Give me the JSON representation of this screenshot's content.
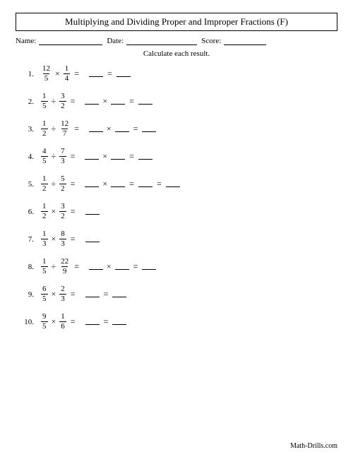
{
  "title": "Multiplying and Dividing Proper and Improper Fractions (F)",
  "labels": {
    "name": "Name:",
    "date": "Date:",
    "score": "Score:"
  },
  "instruction": "Calculate each result.",
  "footer": "Math-Drills.com",
  "colors": {
    "background": "#ffffff",
    "text": "#000000",
    "border": "#000000"
  },
  "style": {
    "font_family": "Times New Roman, serif",
    "title_fontsize": 13,
    "body_fontsize": 11,
    "blank_frac_width": 20,
    "blank_single_width": 20
  },
  "problems": [
    {
      "num": "1.",
      "f1n": "12",
      "f1d": "5",
      "op": "×",
      "f2n": "1",
      "f2d": "4",
      "rhs": [
        {
          "t": "blank"
        },
        {
          "t": "eq"
        },
        {
          "t": "blank"
        }
      ]
    },
    {
      "num": "2.",
      "f1n": "1",
      "f1d": "5",
      "op": "÷",
      "f2n": "3",
      "f2d": "2",
      "rhs": [
        {
          "t": "blank"
        },
        {
          "t": "times"
        },
        {
          "t": "blank"
        },
        {
          "t": "eq"
        },
        {
          "t": "blank"
        }
      ]
    },
    {
      "num": "3.",
      "f1n": "1",
      "f1d": "2",
      "op": "÷",
      "f2n": "12",
      "f2d": "7",
      "rhs": [
        {
          "t": "blank"
        },
        {
          "t": "times"
        },
        {
          "t": "blank"
        },
        {
          "t": "eq"
        },
        {
          "t": "blank"
        }
      ]
    },
    {
      "num": "4.",
      "f1n": "4",
      "f1d": "5",
      "op": "÷",
      "f2n": "7",
      "f2d": "3",
      "rhs": [
        {
          "t": "blank"
        },
        {
          "t": "times"
        },
        {
          "t": "blank"
        },
        {
          "t": "eq"
        },
        {
          "t": "blank"
        }
      ]
    },
    {
      "num": "5.",
      "f1n": "1",
      "f1d": "2",
      "op": "÷",
      "f2n": "5",
      "f2d": "2",
      "rhs": [
        {
          "t": "blank"
        },
        {
          "t": "times"
        },
        {
          "t": "blank"
        },
        {
          "t": "eq"
        },
        {
          "t": "blank"
        },
        {
          "t": "eq"
        },
        {
          "t": "blank"
        }
      ]
    },
    {
      "num": "6.",
      "f1n": "1",
      "f1d": "2",
      "op": "×",
      "f2n": "3",
      "f2d": "2",
      "rhs": [
        {
          "t": "blank"
        }
      ]
    },
    {
      "num": "7.",
      "f1n": "1",
      "f1d": "3",
      "op": "×",
      "f2n": "8",
      "f2d": "3",
      "rhs": [
        {
          "t": "blank"
        }
      ]
    },
    {
      "num": "8.",
      "f1n": "1",
      "f1d": "5",
      "op": "÷",
      "f2n": "22",
      "f2d": "9",
      "rhs": [
        {
          "t": "blank"
        },
        {
          "t": "times"
        },
        {
          "t": "blank"
        },
        {
          "t": "eq"
        },
        {
          "t": "blank"
        }
      ]
    },
    {
      "num": "9.",
      "f1n": "6",
      "f1d": "5",
      "op": "×",
      "f2n": "2",
      "f2d": "3",
      "rhs": [
        {
          "t": "blank"
        },
        {
          "t": "eq"
        },
        {
          "t": "blank"
        }
      ]
    },
    {
      "num": "10.",
      "f1n": "9",
      "f1d": "5",
      "op": "×",
      "f2n": "1",
      "f2d": "6",
      "rhs": [
        {
          "t": "blank"
        },
        {
          "t": "eq"
        },
        {
          "t": "blank"
        }
      ]
    }
  ]
}
